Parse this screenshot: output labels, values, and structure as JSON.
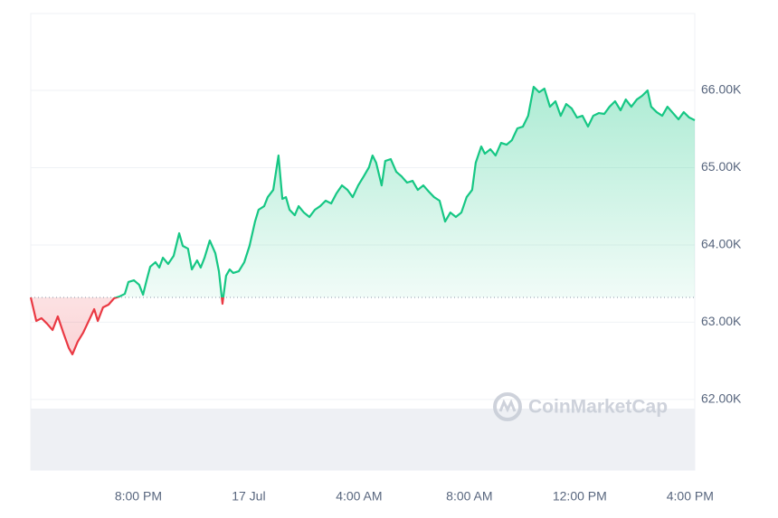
{
  "chart_data": {
    "type": "line",
    "watermark": "CoinMarketCap",
    "x": [
      16.1,
      16.3,
      16.49,
      16.69,
      16.89,
      17.08,
      17.28,
      17.48,
      17.61,
      17.8,
      18.0,
      18.2,
      18.4,
      18.53,
      18.72,
      18.92,
      19.12,
      19.31,
      19.51,
      19.64,
      19.84,
      20.03,
      20.17,
      20.3,
      20.43,
      20.62,
      20.76,
      20.89,
      21.08,
      21.28,
      21.48,
      21.61,
      21.8,
      21.94,
      22.13,
      22.26,
      22.4,
      22.59,
      22.79,
      22.92,
      23.05,
      23.18,
      23.31,
      23.44,
      23.64,
      23.84,
      24.03,
      24.23,
      24.36,
      24.56,
      24.69,
      24.89,
      25.08,
      25.22,
      25.35,
      25.48,
      25.67,
      25.81,
      26.0,
      26.2,
      26.4,
      26.59,
      26.79,
      26.99,
      27.18,
      27.38,
      27.58,
      27.77,
      27.97,
      28.17,
      28.36,
      28.49,
      28.62,
      28.82,
      28.95,
      29.15,
      29.35,
      29.54,
      29.74,
      29.94,
      30.13,
      30.33,
      30.53,
      30.72,
      30.92,
      31.12,
      31.31,
      31.51,
      31.71,
      31.9,
      32.1,
      32.23,
      32.43,
      32.56,
      32.76,
      32.95,
      33.15,
      33.35,
      33.54,
      33.74,
      33.94,
      34.13,
      34.33,
      34.53,
      34.72,
      34.92,
      35.12,
      35.31,
      35.51,
      35.71,
      35.9,
      36.1,
      36.3,
      36.49,
      36.69,
      36.89,
      37.08,
      37.28,
      37.48,
      37.67,
      37.87,
      38.07,
      38.26,
      38.46,
      38.59,
      38.79,
      38.99,
      39.18,
      39.38,
      39.58,
      39.77,
      39.97,
      40.17
    ],
    "series": [
      {
        "color": "#16c784",
        "color_below": "#ea3943",
        "values": [
          63321,
          63016,
          63052,
          62981,
          62899,
          63075,
          62864,
          62665,
          62584,
          62747,
          62864,
          63016,
          63169,
          63016,
          63192,
          63227,
          63309,
          63332,
          63367,
          63520,
          63543,
          63484,
          63356,
          63543,
          63718,
          63777,
          63707,
          63835,
          63754,
          63859,
          64151,
          63988,
          63952,
          63683,
          63800,
          63707,
          63835,
          64058,
          63894,
          63660,
          63239,
          63601,
          63683,
          63637,
          63660,
          63777,
          63988,
          64303,
          64456,
          64502,
          64619,
          64713,
          65158,
          64596,
          64619,
          64456,
          64385,
          64502,
          64420,
          64362,
          64456,
          64502,
          64573,
          64537,
          64666,
          64771,
          64713,
          64619,
          64771,
          64888,
          65005,
          65158,
          65064,
          64771,
          65087,
          65111,
          64947,
          64888,
          64807,
          64830,
          64713,
          64771,
          64690,
          64619,
          64573,
          64303,
          64420,
          64362,
          64420,
          64619,
          64713,
          65064,
          65275,
          65181,
          65239,
          65158,
          65321,
          65298,
          65356,
          65509,
          65532,
          65672,
          66047,
          65977,
          66023,
          65789,
          65860,
          65672,
          65824,
          65766,
          65649,
          65672,
          65532,
          65672,
          65707,
          65696,
          65789,
          65860,
          65743,
          65883,
          65789,
          65883,
          65930,
          66000,
          65789,
          65719,
          65672,
          65789,
          65707,
          65626,
          65719,
          65649,
          65614
        ]
      }
    ],
    "baseline": 63321,
    "xlim": [
      16.1,
      40.17
    ],
    "xticks": [
      {
        "value": 20,
        "label": "8:00 PM"
      },
      {
        "value": 24,
        "label": "17 Jul"
      },
      {
        "value": 28,
        "label": "4:00 AM"
      },
      {
        "value": 32,
        "label": "8:00 AM"
      },
      {
        "value": 36,
        "label": "12:00 PM"
      },
      {
        "value": 40,
        "label": "4:00 PM"
      }
    ],
    "ylim": [
      61086,
      66995
    ],
    "yticks": [
      {
        "value": 62000,
        "label": "62.00K"
      },
      {
        "value": 63000,
        "label": "63.00K"
      },
      {
        "value": 64000,
        "label": "64.00K"
      },
      {
        "value": 65000,
        "label": "65.00K"
      },
      {
        "value": 66000,
        "label": "66.00K"
      }
    ],
    "grid": true
  }
}
